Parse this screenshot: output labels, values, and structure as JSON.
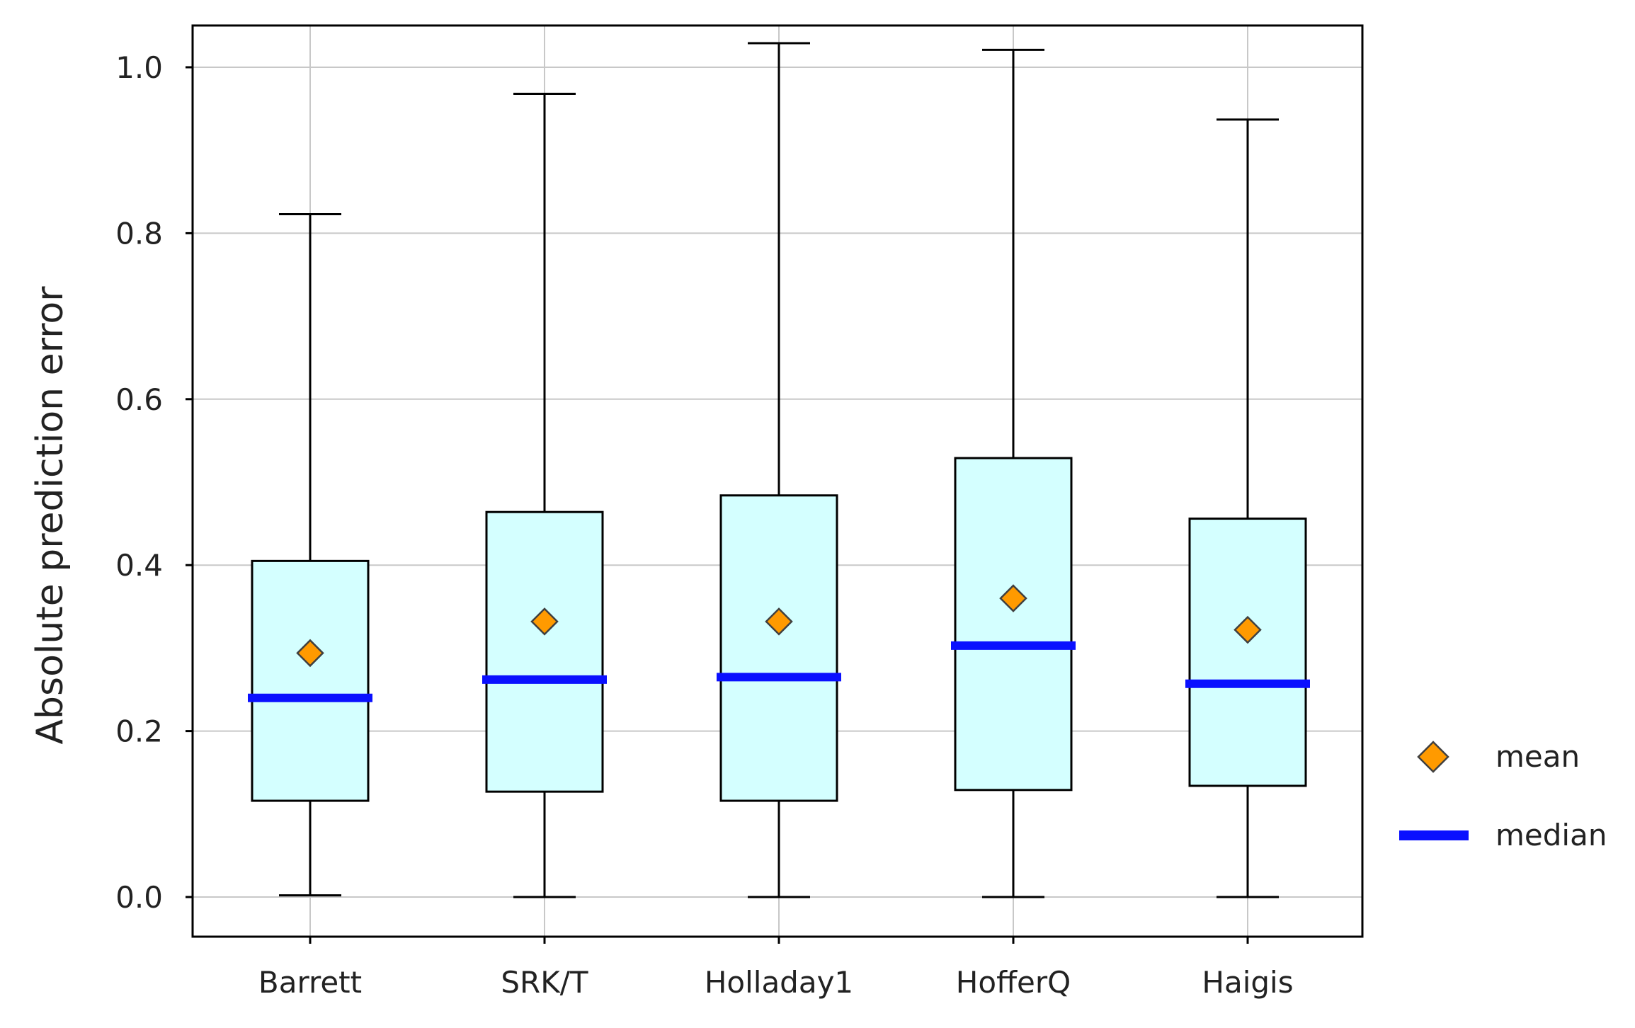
{
  "chart_data": {
    "type": "boxplot",
    "title": "",
    "xlabel": "",
    "ylabel": "Absolute prediction error",
    "ylim": [
      -0.05,
      1.05
    ],
    "yticks": [
      "0.0",
      "0.2",
      "0.4",
      "0.6",
      "0.8",
      "1.0"
    ],
    "grid": true,
    "categories": [
      "Barrett",
      "SRK/T",
      "Holladay1",
      "HofferQ",
      "Haigis"
    ],
    "series": [
      {
        "name": "Barrett",
        "min": 0.002,
        "q1": 0.116,
        "median": 0.24,
        "mean": 0.294,
        "q3": 0.405,
        "max": 0.823
      },
      {
        "name": "SRK/T",
        "min": 0.0,
        "q1": 0.127,
        "median": 0.262,
        "mean": 0.332,
        "q3": 0.464,
        "max": 0.968
      },
      {
        "name": "Holladay1",
        "min": 0.0,
        "q1": 0.116,
        "median": 0.265,
        "mean": 0.332,
        "q3": 0.484,
        "max": 1.029
      },
      {
        "name": "HofferQ",
        "min": 0.0,
        "q1": 0.129,
        "median": 0.303,
        "mean": 0.36,
        "q3": 0.529,
        "max": 1.021
      },
      {
        "name": "Haigis",
        "min": 0.0,
        "q1": 0.134,
        "median": 0.257,
        "mean": 0.322,
        "q3": 0.456,
        "max": 0.937
      }
    ],
    "legend": {
      "position": "right",
      "items": [
        {
          "key": "mean",
          "label": "mean"
        },
        {
          "key": "median",
          "label": "median"
        }
      ]
    },
    "colors": {
      "box_fill": "#d4ffff",
      "box_stroke": "#000000",
      "median": "#0a10ff",
      "mean_fill": "#ff9a00",
      "mean_stroke": "#404040",
      "grid": "#c8c8c8",
      "axis": "#000000"
    }
  }
}
